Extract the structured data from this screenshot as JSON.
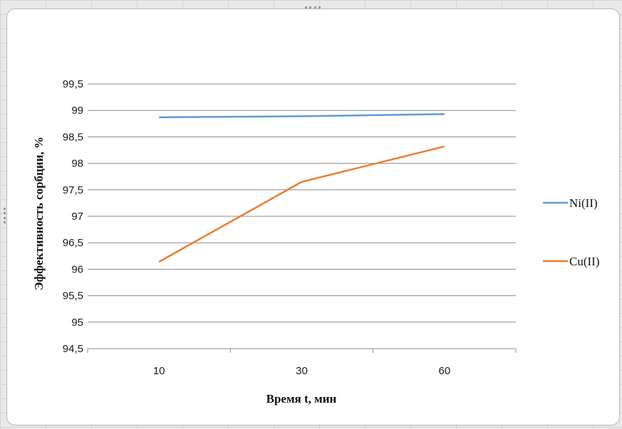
{
  "chart_data": {
    "type": "line",
    "categories": [
      "10",
      "30",
      "60"
    ],
    "series": [
      {
        "name": "Ni(II)",
        "values": [
          98.87,
          98.89,
          98.93
        ],
        "color": "#5b9bd5"
      },
      {
        "name": "Cu(II)",
        "values": [
          96.14,
          97.65,
          98.32
        ],
        "color": "#ed7d31"
      }
    ],
    "yticks": [
      "94,5",
      "95",
      "95,5",
      "96",
      "96,5",
      "97",
      "97,5",
      "98",
      "98,5",
      "99",
      "99,5"
    ],
    "ylim": [
      94.5,
      99.5
    ],
    "xlabel": "Время t, мин",
    "ylabel": "Эффективность сорбции, %",
    "grid": "horizontal",
    "legend_position": "right"
  }
}
